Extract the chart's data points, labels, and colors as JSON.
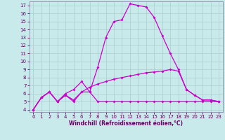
{
  "xlabel": "Windchill (Refroidissement éolien,°C)",
  "background_color": "#c8eaea",
  "grid_color": "#aacccc",
  "line_color": "#cc00cc",
  "xlim_min": -0.5,
  "xlim_max": 23.5,
  "ylim_min": 3.7,
  "ylim_max": 17.5,
  "xticks": [
    0,
    1,
    2,
    3,
    4,
    5,
    6,
    7,
    8,
    9,
    10,
    11,
    12,
    13,
    14,
    15,
    16,
    17,
    18,
    19,
    20,
    21,
    22,
    23
  ],
  "yticks": [
    4,
    5,
    6,
    7,
    8,
    9,
    10,
    11,
    12,
    13,
    14,
    15,
    16,
    17
  ],
  "line1_x": [
    0,
    1,
    2,
    3,
    4,
    5,
    6,
    7,
    8,
    9,
    10,
    11,
    12,
    13,
    14,
    15,
    16,
    17,
    18,
    19,
    20,
    21,
    22,
    23
  ],
  "line1_y": [
    4.0,
    5.5,
    6.2,
    5.0,
    6.0,
    6.5,
    7.5,
    6.2,
    9.3,
    13.0,
    15.0,
    15.2,
    17.2,
    17.0,
    16.8,
    15.5,
    13.2,
    11.0,
    9.0,
    6.5,
    5.8,
    5.2,
    5.2,
    5.0
  ],
  "line2_x": [
    0,
    1,
    2,
    3,
    4,
    5,
    6,
    7,
    8,
    9,
    10,
    11,
    12,
    13,
    14,
    15,
    16,
    17,
    18,
    19,
    20,
    21,
    22,
    23
  ],
  "line2_y": [
    4.0,
    5.5,
    6.2,
    5.0,
    5.8,
    5.2,
    6.2,
    6.8,
    7.2,
    7.5,
    7.8,
    8.0,
    8.2,
    8.4,
    8.6,
    8.7,
    8.8,
    9.0,
    8.8,
    6.5,
    5.8,
    5.2,
    5.2,
    5.0
  ],
  "line3_x": [
    0,
    1,
    2,
    3,
    4,
    5,
    6,
    7,
    8,
    9,
    10,
    11,
    12,
    13,
    14,
    15,
    16,
    17,
    18,
    19,
    20,
    21,
    22,
    23
  ],
  "line3_y": [
    4.0,
    5.5,
    6.2,
    5.0,
    5.8,
    5.0,
    6.2,
    6.2,
    5.0,
    5.0,
    5.0,
    5.0,
    5.0,
    5.0,
    5.0,
    5.0,
    5.0,
    5.0,
    5.0,
    5.0,
    5.0,
    5.0,
    5.0,
    5.0
  ],
  "tick_color": "#660066",
  "label_fontsize": 5.5,
  "tick_fontsize": 5.0
}
